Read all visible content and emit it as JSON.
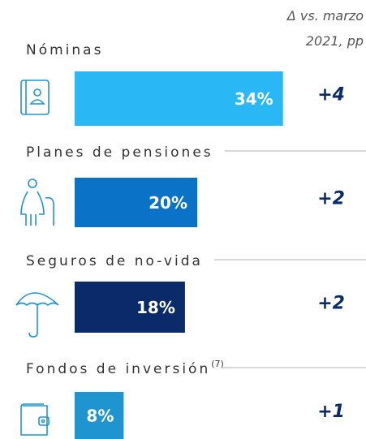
{
  "chart_data": {
    "type": "bar",
    "header": "Δ vs. marzo 2021, pp",
    "categories": [
      "Nóminas",
      "Planes de pensiones",
      "Seguros de no-vida",
      "Fondos de inversión"
    ],
    "category_superscripts": [
      null,
      null,
      null,
      "(7)"
    ],
    "values": [
      34,
      20,
      18,
      8
    ],
    "value_labels": [
      "34%",
      "20%",
      "18%",
      "8%"
    ],
    "colors": [
      "#29b8f5",
      "#0b73c7",
      "#0b2a6a",
      "#1e95d1"
    ],
    "deltas": [
      4,
      2,
      2,
      1
    ],
    "delta_labels": [
      "+4",
      "+2",
      "+2",
      "+1"
    ]
  }
}
